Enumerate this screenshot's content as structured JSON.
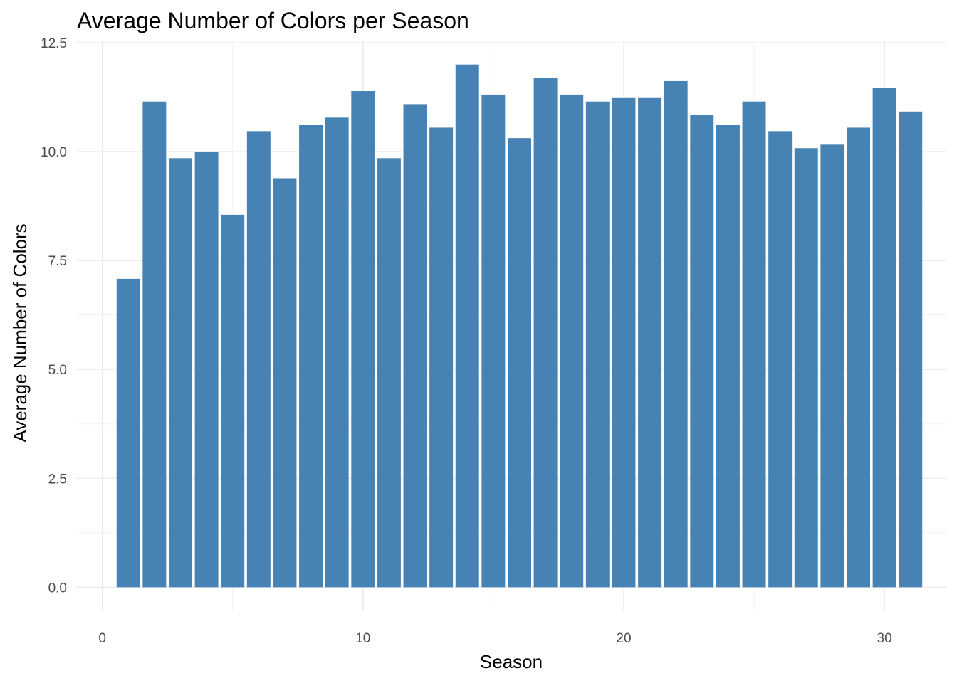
{
  "chart_data": {
    "type": "bar",
    "title": "Average Number of Colors per Season",
    "xlabel": "Season",
    "ylabel": "Average Number of Colors",
    "x": [
      1,
      2,
      3,
      4,
      5,
      6,
      7,
      8,
      9,
      10,
      11,
      12,
      13,
      14,
      15,
      16,
      17,
      18,
      19,
      20,
      21,
      22,
      23,
      24,
      25,
      26,
      27,
      28,
      29,
      30,
      31
    ],
    "values": [
      7.08,
      11.15,
      9.85,
      10.0,
      8.55,
      10.47,
      9.39,
      10.62,
      10.78,
      11.39,
      9.85,
      11.09,
      10.55,
      12.0,
      11.31,
      10.31,
      11.69,
      11.31,
      11.15,
      11.23,
      11.23,
      11.62,
      10.85,
      10.62,
      11.15,
      10.47,
      10.08,
      10.16,
      10.55,
      11.46,
      10.92
    ],
    "xlim": [
      -1,
      32.4
    ],
    "ylim": [
      -0.55,
      12.55
    ],
    "xticks": [
      0,
      10,
      20,
      30
    ],
    "yticks": [
      0.0,
      2.5,
      5.0,
      7.5,
      10.0,
      12.5
    ],
    "xtick_labels": [
      "0",
      "10",
      "20",
      "30"
    ],
    "ytick_labels": [
      "0.0",
      "2.5",
      "5.0",
      "7.5",
      "10.0",
      "12.5"
    ],
    "grid": true,
    "bar_color": "#4682b4",
    "background": "#ffffff"
  }
}
